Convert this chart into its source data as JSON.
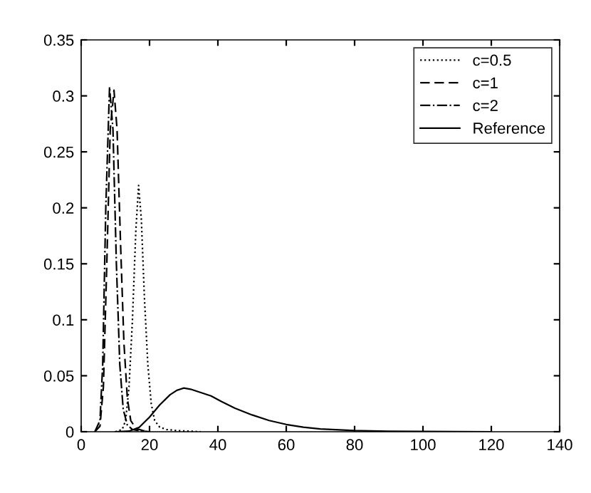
{
  "chart_data": {
    "type": "line",
    "xlim": [
      0,
      140
    ],
    "ylim": [
      0,
      0.35
    ],
    "xticks": [
      0,
      20,
      40,
      60,
      80,
      100,
      120,
      140
    ],
    "yticks": [
      0,
      0.05,
      0.1,
      0.15,
      0.2,
      0.25,
      0.3,
      0.35
    ],
    "legend": "top right",
    "grid": false,
    "series": [
      {
        "name": "c=0.5",
        "color": "#000000",
        "line_style": "dotted",
        "x": [
          10,
          12,
          13,
          14,
          15,
          16,
          16.8,
          17.6,
          18.5,
          19.5,
          20.5,
          21.5,
          23,
          25,
          28,
          35
        ],
        "values": [
          0,
          0.002,
          0.01,
          0.04,
          0.1,
          0.18,
          0.22,
          0.19,
          0.12,
          0.06,
          0.025,
          0.01,
          0.004,
          0.002,
          0.001,
          0
        ]
      },
      {
        "name": "c=1",
        "color": "#000000",
        "line_style": "dashed",
        "x": [
          4,
          5.5,
          6.5,
          7.5,
          8.5,
          9.6,
          10.5,
          11.5,
          12.5,
          13.5,
          14.5,
          16,
          18,
          20
        ],
        "values": [
          0,
          0.005,
          0.04,
          0.15,
          0.27,
          0.305,
          0.27,
          0.17,
          0.08,
          0.03,
          0.01,
          0.003,
          0.001,
          0
        ]
      },
      {
        "name": "c=2",
        "color": "#000000",
        "line_style": "dashdot",
        "x": [
          4,
          5.5,
          6.3,
          7.2,
          8.3,
          9.3,
          10.3,
          11.3,
          12.3,
          13.5,
          15,
          17,
          20
        ],
        "values": [
          0,
          0.01,
          0.06,
          0.2,
          0.308,
          0.27,
          0.15,
          0.06,
          0.02,
          0.006,
          0.002,
          0.001,
          0
        ]
      },
      {
        "name": "Reference",
        "color": "#000000",
        "line_style": "solid",
        "x": [
          10,
          14,
          17,
          20,
          23,
          26,
          28,
          30,
          32,
          35,
          38,
          41,
          45,
          50,
          55,
          60,
          65,
          70,
          80,
          90,
          100,
          110,
          120
        ],
        "values": [
          0,
          0.0005,
          0.004,
          0.013,
          0.024,
          0.033,
          0.037,
          0.039,
          0.038,
          0.035,
          0.032,
          0.027,
          0.021,
          0.015,
          0.01,
          0.0065,
          0.004,
          0.0025,
          0.001,
          0.0004,
          0.0002,
          0.0001,
          0
        ]
      }
    ]
  }
}
